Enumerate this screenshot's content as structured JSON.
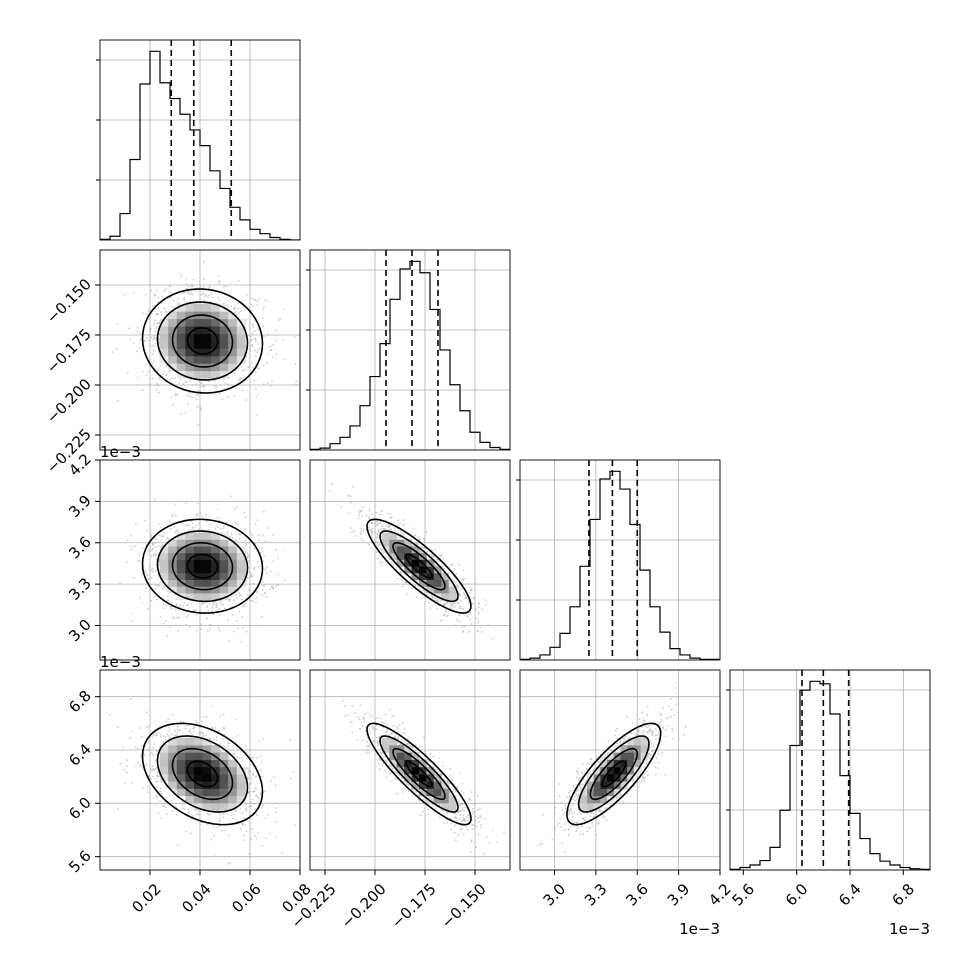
{
  "chart_data": {
    "type": "corner",
    "n_params": 4,
    "colors": {
      "line": "#000000",
      "grid": "#b0b0b0",
      "points": "#b8b8b8",
      "background": "#ffffff"
    },
    "grid": true,
    "params": [
      {
        "range": [
          0.0,
          0.08
        ],
        "ticks": [
          0.02,
          0.04,
          0.06,
          0.08
        ],
        "tick_labels": [
          "0.02",
          "0.04",
          "0.06",
          "0.08"
        ],
        "offset_text": "",
        "mean": 0.041,
        "sd": 0.012,
        "quantiles": [
          0.0285,
          0.0375,
          0.0525
        ]
      },
      {
        "range": [
          -0.2325,
          -0.1325
        ],
        "ticks": [
          -0.225,
          -0.2,
          -0.175,
          -0.15
        ],
        "tick_labels": [
          "−0.225",
          "−0.200",
          "−0.175",
          "−0.150"
        ],
        "offset_text": "",
        "mean": -0.178,
        "sd": 0.013,
        "quantiles": [
          -0.1945,
          -0.1815,
          -0.1685
        ]
      },
      {
        "range": [
          2.75,
          4.2
        ],
        "ticks": [
          3.0,
          3.3,
          3.6,
          3.9,
          4.2
        ],
        "tick_labels": [
          "3.0",
          "3.3",
          "3.6",
          "3.9",
          "4.2"
        ],
        "offset_text": "1e−3",
        "mean": 3.43,
        "sd": 0.17,
        "quantiles": [
          3.25,
          3.42,
          3.6
        ]
      },
      {
        "range": [
          5.5,
          7.0
        ],
        "ticks": [
          5.6,
          6.0,
          6.4,
          6.8
        ],
        "tick_labels": [
          "5.6",
          "6.0",
          "6.4",
          "6.8"
        ],
        "offset_text": "1e−3",
        "mean": 6.22,
        "sd": 0.19,
        "quantiles": [
          6.04,
          6.2,
          6.39
        ]
      }
    ],
    "correlations": {
      "1-0": -0.05,
      "2-0": -0.05,
      "2-1": -0.85,
      "3-0": -0.35,
      "3-1": -0.88,
      "3-2": 0.8
    },
    "histograms": [
      {
        "bin_edges_start": 0.0,
        "bin_width": 0.004,
        "counts": [
          1,
          6,
          42,
          128,
          248,
          300,
          250,
          225,
          200,
          175,
          150,
          110,
          82,
          52,
          32,
          17,
          10,
          4,
          1,
          0
        ]
      },
      {
        "bin_edges_start": -0.2325,
        "bin_width": 0.005,
        "counts": [
          1,
          3,
          10,
          20,
          38,
          70,
          116,
          168,
          238,
          286,
          298,
          280,
          222,
          158,
          103,
          62,
          28,
          12,
          4,
          1
        ]
      },
      {
        "bin_edges_start": 2.75,
        "bin_width": 0.0725,
        "counts": [
          1,
          3,
          8,
          20,
          42,
          84,
          148,
          222,
          286,
          298,
          270,
          214,
          142,
          84,
          44,
          18,
          8,
          3,
          1,
          1
        ]
      },
      {
        "bin_edges_start": 5.5,
        "bin_width": 0.075,
        "counts": [
          1,
          4,
          8,
          15,
          36,
          95,
          198,
          286,
          300,
          296,
          248,
          150,
          90,
          50,
          26,
          14,
          8,
          4,
          2,
          1
        ]
      }
    ]
  }
}
